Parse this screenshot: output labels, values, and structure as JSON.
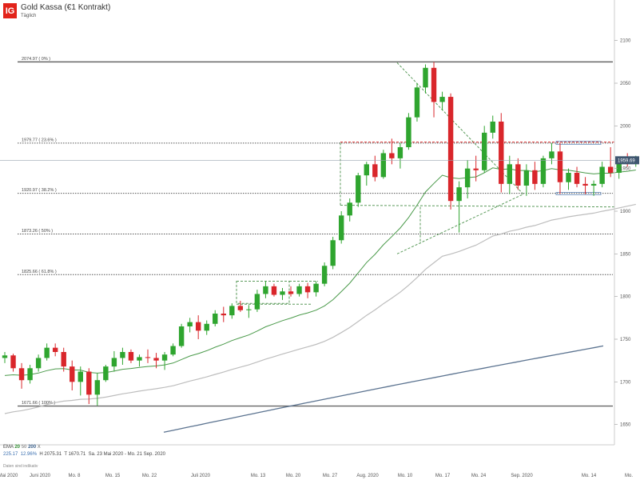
{
  "header": {
    "logo_text": "IG",
    "title": "Gold Kassa (€1 Kontrakt)",
    "subtitle": "Täglich"
  },
  "legend": {
    "ema_label": "EMA",
    "ema_20": "20",
    "ema_50": "50",
    "ema_200": "200",
    "ema_x": "X",
    "val_1": "225.17",
    "val_2": "12.96%",
    "high": "H 2075.31",
    "low": "T 1670.71",
    "range": "Sa. 23 Mai 2020 - Mo. 21 Sep. 2020",
    "disclaimer": "Daten sind indikativ"
  },
  "chart_data": {
    "type": "candlestick",
    "title": "Gold Kassa (€1 Kontrakt)",
    "subtitle": "Täglich",
    "ylim": [
      1630,
      2110
    ],
    "y_ticks": [
      1650,
      1700,
      1750,
      1800,
      1850,
      1900,
      1950,
      2000,
      2050,
      2100
    ],
    "x_ticks": [
      "Mai 2020",
      "Juni 2020",
      "Mo. 8",
      "Mo. 15",
      "Mo. 22",
      "Juli 2020",
      "Mo. 13",
      "Mo. 20",
      "Mo. 27",
      "Aug. 2020",
      "Mo. 10",
      "Mo. 17",
      "Mo. 24",
      "Sep. 2020",
      "Mo. 14",
      "Mo."
    ],
    "current_price": "1959.69",
    "fib_levels": [
      {
        "label": "2074.97 ( 0% )",
        "value": 2074.97
      },
      {
        "label": "1979.77 ( 23.6% )",
        "value": 1979.77
      },
      {
        "label": "1920.97 ( 38.2% )",
        "value": 1920.97
      },
      {
        "label": "1873.26 ( 50% )",
        "value": 1873.26
      },
      {
        "label": "1825.66 ( 61.8% )",
        "value": 1825.66
      },
      {
        "label": "1671.66 ( 100% )",
        "value": 1671.66
      }
    ],
    "candles": [
      [
        1728,
        1735,
        1722,
        1731
      ],
      [
        1731,
        1733,
        1712,
        1716
      ],
      [
        1716,
        1722,
        1692,
        1702
      ],
      [
        1702,
        1720,
        1698,
        1716
      ],
      [
        1716,
        1732,
        1712,
        1728
      ],
      [
        1728,
        1745,
        1725,
        1740
      ],
      [
        1740,
        1745,
        1730,
        1735
      ],
      [
        1735,
        1740,
        1712,
        1718
      ],
      [
        1718,
        1725,
        1690,
        1700
      ],
      [
        1700,
        1718,
        1684,
        1712
      ],
      [
        1712,
        1716,
        1674,
        1685
      ],
      [
        1685,
        1710,
        1672,
        1702
      ],
      [
        1702,
        1720,
        1700,
        1718
      ],
      [
        1718,
        1736,
        1712,
        1728
      ],
      [
        1728,
        1740,
        1720,
        1735
      ],
      [
        1735,
        1738,
        1722,
        1725
      ],
      [
        1725,
        1732,
        1718,
        1729
      ],
      [
        1729,
        1738,
        1722,
        1728
      ],
      [
        1728,
        1734,
        1716,
        1725
      ],
      [
        1725,
        1735,
        1714,
        1732
      ],
      [
        1732,
        1745,
        1730,
        1742
      ],
      [
        1742,
        1768,
        1740,
        1765
      ],
      [
        1765,
        1775,
        1758,
        1770
      ],
      [
        1770,
        1778,
        1750,
        1760
      ],
      [
        1760,
        1772,
        1755,
        1768
      ],
      [
        1768,
        1784,
        1765,
        1780
      ],
      [
        1780,
        1788,
        1770,
        1778
      ],
      [
        1778,
        1792,
        1774,
        1789
      ],
      [
        1789,
        1795,
        1782,
        1784
      ],
      [
        1784,
        1790,
        1775,
        1785
      ],
      [
        1785,
        1808,
        1782,
        1803
      ],
      [
        1803,
        1818,
        1798,
        1812
      ],
      [
        1812,
        1815,
        1800,
        1802
      ],
      [
        1802,
        1810,
        1796,
        1806
      ],
      [
        1806,
        1812,
        1800,
        1803
      ],
      [
        1803,
        1815,
        1800,
        1812
      ],
      [
        1812,
        1816,
        1798,
        1805
      ],
      [
        1805,
        1818,
        1800,
        1815
      ],
      [
        1815,
        1840,
        1812,
        1836
      ],
      [
        1836,
        1870,
        1832,
        1866
      ],
      [
        1866,
        1900,
        1862,
        1895
      ],
      [
        1895,
        1915,
        1888,
        1910
      ],
      [
        1910,
        1945,
        1905,
        1942
      ],
      [
        1942,
        1958,
        1930,
        1955
      ],
      [
        1955,
        1965,
        1935,
        1940
      ],
      [
        1940,
        1972,
        1938,
        1968
      ],
      [
        1968,
        1985,
        1955,
        1962
      ],
      [
        1962,
        1980,
        1950,
        1975
      ],
      [
        1975,
        2015,
        1972,
        2010
      ],
      [
        2010,
        2050,
        2005,
        2045
      ],
      [
        2045,
        2072,
        2038,
        2068
      ],
      [
        2068,
        2075,
        2010,
        2028
      ],
      [
        2028,
        2040,
        2018,
        2034
      ],
      [
        2034,
        2038,
        1902,
        1912
      ],
      [
        1912,
        1935,
        1875,
        1928
      ],
      [
        1928,
        1960,
        1915,
        1950
      ],
      [
        1950,
        1965,
        1935,
        1948
      ],
      [
        1948,
        2000,
        1945,
        1992
      ],
      [
        1992,
        2012,
        1985,
        2005
      ],
      [
        2005,
        2015,
        1922,
        1932
      ],
      [
        1932,
        1965,
        1920,
        1955
      ],
      [
        1955,
        1962,
        1925,
        1930
      ],
      [
        1930,
        1955,
        1918,
        1948
      ],
      [
        1948,
        1958,
        1925,
        1932
      ],
      [
        1932,
        1965,
        1928,
        1962
      ],
      [
        1962,
        1980,
        1955,
        1970
      ],
      [
        1970,
        1980,
        1920,
        1934
      ],
      [
        1934,
        1950,
        1925,
        1945
      ],
      [
        1945,
        1952,
        1928,
        1932
      ],
      [
        1932,
        1940,
        1920,
        1930
      ],
      [
        1930,
        1936,
        1918,
        1932
      ],
      [
        1932,
        1958,
        1928,
        1952
      ],
      [
        1952,
        1975,
        1940,
        1945
      ],
      [
        1945,
        1962,
        1938,
        1958
      ],
      [
        1958,
        1968,
        1952,
        1956
      ],
      [
        1956,
        1965,
        1952,
        1962
      ]
    ]
  }
}
